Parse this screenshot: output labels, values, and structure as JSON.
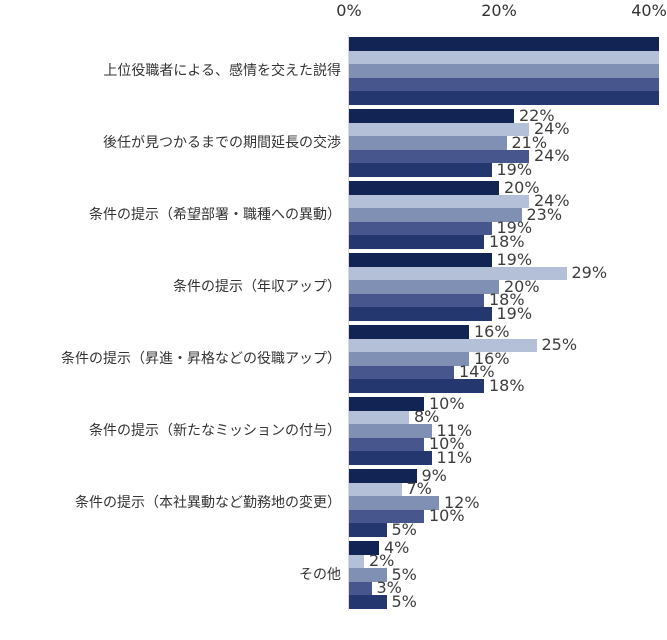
{
  "chart_data": {
    "type": "bar",
    "orientation": "horizontal",
    "title": "",
    "xlabel": "",
    "ylabel": "",
    "legend": "none",
    "grid": false,
    "x_axis": {
      "position": "top",
      "ticks": [
        {
          "label": "0%",
          "value": 0
        },
        {
          "label": "20%",
          "value": 20
        },
        {
          "label": "40%",
          "value": 40
        }
      ],
      "range_visible": [
        0,
        39
      ],
      "note": "plot area clipped at right edge of image; 40% tick partially visible"
    },
    "series_colors": [
      "#112453",
      "#B4BFD8",
      "#8090B5",
      "#47568C",
      "#24386F"
    ],
    "series_count": 5,
    "groups": [
      {
        "category": "上位役職者による、感情を交えた説得",
        "values": [
          null,
          null,
          null,
          null,
          null
        ],
        "labels": [
          "",
          "",
          "",
          "",
          ""
        ],
        "clipped_beyond_right_edge": true
      },
      {
        "category": "後任が見つかるまでの期間延長の交渉",
        "values": [
          22,
          24,
          21,
          24,
          19
        ],
        "labels": [
          "22%",
          "24%",
          "21%",
          "24%",
          "19%"
        ]
      },
      {
        "category": "条件の提示（希望部署・職種への異動）",
        "values": [
          20,
          24,
          23,
          19,
          18
        ],
        "labels": [
          "20%",
          "24%",
          "23%",
          "19%",
          "18%"
        ]
      },
      {
        "category": "条件の提示（年収アップ）",
        "values": [
          19,
          29,
          20,
          18,
          19
        ],
        "labels": [
          "19%",
          "29%",
          "20%",
          "18%",
          "19%"
        ]
      },
      {
        "category": "条件の提示（昇進・昇格などの役職アップ）",
        "values": [
          16,
          25,
          16,
          14,
          18
        ],
        "labels": [
          "16%",
          "25%",
          "16%",
          "14%",
          "18%"
        ]
      },
      {
        "category": "条件の提示（新たなミッションの付与）",
        "values": [
          10,
          8,
          11,
          10,
          11
        ],
        "labels": [
          "10%",
          "8%",
          "11%",
          "10%",
          "11%"
        ]
      },
      {
        "category": "条件の提示（本社異動など勤務地の変更）",
        "values": [
          9,
          7,
          12,
          10,
          5
        ],
        "labels": [
          "9%",
          "7%",
          "12%",
          "10%",
          "5%"
        ]
      },
      {
        "category": "その他",
        "values": [
          4,
          2,
          5,
          3,
          5
        ],
        "labels": [
          "4%",
          "2%",
          "5%",
          "3%",
          "5%"
        ]
      }
    ]
  }
}
